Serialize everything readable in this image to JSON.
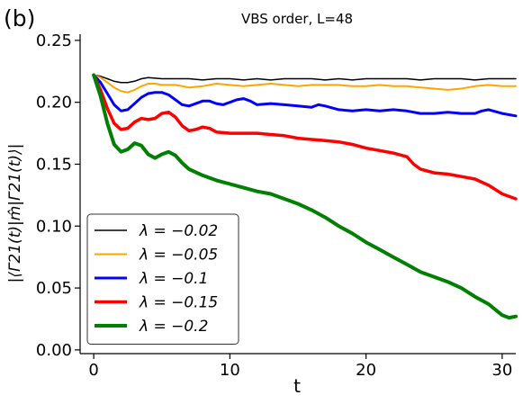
{
  "panel_label": "(b)",
  "chart_data": {
    "type": "line",
    "title": "VBS order, L=48",
    "xlabel": "t",
    "ylabel": "|⟨Γ21(t)|m̂|Γ21(t)⟩|",
    "xlim": [
      -1,
      31
    ],
    "ylim": [
      -0.003,
      0.255
    ],
    "xticks": [
      0,
      10,
      20,
      30
    ],
    "yticks": [
      0.0,
      0.05,
      0.1,
      0.15,
      0.2,
      0.25
    ],
    "ytick_labels": [
      "0.00",
      "0.05",
      "0.10",
      "0.15",
      "0.20",
      "0.25"
    ],
    "grid": false,
    "legend_position": "lower-left",
    "series": [
      {
        "name": "λ = −0.02",
        "color": "#000000",
        "linewidth": 1.5,
        "points": [
          [
            0,
            0.222
          ],
          [
            0.5,
            0.221
          ],
          [
            1,
            0.219
          ],
          [
            1.5,
            0.217
          ],
          [
            2,
            0.216
          ],
          [
            2.5,
            0.216
          ],
          [
            3,
            0.217
          ],
          [
            3.5,
            0.219
          ],
          [
            4,
            0.22
          ],
          [
            5,
            0.219
          ],
          [
            6,
            0.219
          ],
          [
            7,
            0.219
          ],
          [
            8,
            0.218
          ],
          [
            9,
            0.219
          ],
          [
            10,
            0.219
          ],
          [
            11,
            0.218
          ],
          [
            12,
            0.219
          ],
          [
            13,
            0.218
          ],
          [
            14,
            0.219
          ],
          [
            15,
            0.219
          ],
          [
            16,
            0.219
          ],
          [
            17,
            0.218
          ],
          [
            18,
            0.219
          ],
          [
            19,
            0.218
          ],
          [
            20,
            0.219
          ],
          [
            21,
            0.219
          ],
          [
            22,
            0.219
          ],
          [
            23,
            0.219
          ],
          [
            24,
            0.218
          ],
          [
            25,
            0.219
          ],
          [
            26,
            0.219
          ],
          [
            27,
            0.219
          ],
          [
            28,
            0.218
          ],
          [
            29,
            0.219
          ],
          [
            30,
            0.219
          ],
          [
            31,
            0.219
          ]
        ]
      },
      {
        "name": "λ = −0.05",
        "color": "#ffa500",
        "linewidth": 2,
        "points": [
          [
            0,
            0.222
          ],
          [
            0.5,
            0.22
          ],
          [
            1,
            0.216
          ],
          [
            1.5,
            0.212
          ],
          [
            2,
            0.209
          ],
          [
            2.5,
            0.208
          ],
          [
            3,
            0.21
          ],
          [
            3.5,
            0.213
          ],
          [
            4,
            0.215
          ],
          [
            4.5,
            0.215
          ],
          [
            5,
            0.214
          ],
          [
            6,
            0.214
          ],
          [
            7,
            0.212
          ],
          [
            8,
            0.213
          ],
          [
            9,
            0.215
          ],
          [
            10,
            0.214
          ],
          [
            11,
            0.213
          ],
          [
            12,
            0.214
          ],
          [
            13,
            0.215
          ],
          [
            14,
            0.214
          ],
          [
            15,
            0.213
          ],
          [
            16,
            0.214
          ],
          [
            17,
            0.214
          ],
          [
            18,
            0.214
          ],
          [
            19,
            0.213
          ],
          [
            20,
            0.213
          ],
          [
            21,
            0.214
          ],
          [
            22,
            0.213
          ],
          [
            23,
            0.213
          ],
          [
            24,
            0.212
          ],
          [
            25,
            0.211
          ],
          [
            26,
            0.21
          ],
          [
            27,
            0.211
          ],
          [
            28,
            0.213
          ],
          [
            29,
            0.214
          ],
          [
            30,
            0.213
          ],
          [
            31,
            0.213
          ]
        ]
      },
      {
        "name": "λ = −0.1",
        "color": "#0000ff",
        "linewidth": 3,
        "points": [
          [
            0,
            0.222
          ],
          [
            0.5,
            0.216
          ],
          [
            1,
            0.207
          ],
          [
            1.5,
            0.198
          ],
          [
            2,
            0.193
          ],
          [
            2.5,
            0.194
          ],
          [
            3,
            0.199
          ],
          [
            3.5,
            0.204
          ],
          [
            4,
            0.207
          ],
          [
            4.5,
            0.208
          ],
          [
            5,
            0.208
          ],
          [
            5.5,
            0.206
          ],
          [
            6,
            0.202
          ],
          [
            6.5,
            0.198
          ],
          [
            7,
            0.197
          ],
          [
            7.5,
            0.199
          ],
          [
            8,
            0.201
          ],
          [
            8.5,
            0.201
          ],
          [
            9,
            0.199
          ],
          [
            9.5,
            0.198
          ],
          [
            10,
            0.2
          ],
          [
            10.5,
            0.202
          ],
          [
            11,
            0.203
          ],
          [
            11.5,
            0.201
          ],
          [
            12,
            0.198
          ],
          [
            13,
            0.199
          ],
          [
            14,
            0.198
          ],
          [
            15,
            0.197
          ],
          [
            16,
            0.196
          ],
          [
            16.5,
            0.198
          ],
          [
            17,
            0.197
          ],
          [
            18,
            0.194
          ],
          [
            19,
            0.193
          ],
          [
            20,
            0.194
          ],
          [
            21,
            0.193
          ],
          [
            22,
            0.194
          ],
          [
            23,
            0.193
          ],
          [
            24,
            0.191
          ],
          [
            25,
            0.191
          ],
          [
            26,
            0.192
          ],
          [
            27,
            0.191
          ],
          [
            28,
            0.191
          ],
          [
            28.5,
            0.193
          ],
          [
            29,
            0.194
          ],
          [
            30,
            0.191
          ],
          [
            31,
            0.189
          ]
        ]
      },
      {
        "name": "λ = −0.15",
        "color": "#ff0000",
        "linewidth": 3.5,
        "points": [
          [
            0,
            0.222
          ],
          [
            0.5,
            0.21
          ],
          [
            1,
            0.195
          ],
          [
            1.5,
            0.183
          ],
          [
            2,
            0.178
          ],
          [
            2.5,
            0.179
          ],
          [
            3,
            0.184
          ],
          [
            3.5,
            0.187
          ],
          [
            4,
            0.186
          ],
          [
            4.5,
            0.187
          ],
          [
            5,
            0.191
          ],
          [
            5.5,
            0.192
          ],
          [
            6,
            0.188
          ],
          [
            6.5,
            0.181
          ],
          [
            7,
            0.177
          ],
          [
            7.5,
            0.178
          ],
          [
            8,
            0.18
          ],
          [
            8.5,
            0.179
          ],
          [
            9,
            0.176
          ],
          [
            10,
            0.175
          ],
          [
            11,
            0.175
          ],
          [
            12,
            0.175
          ],
          [
            13,
            0.174
          ],
          [
            14,
            0.173
          ],
          [
            15,
            0.171
          ],
          [
            16,
            0.17
          ],
          [
            17,
            0.169
          ],
          [
            18,
            0.168
          ],
          [
            19,
            0.166
          ],
          [
            20,
            0.163
          ],
          [
            21,
            0.161
          ],
          [
            22,
            0.159
          ],
          [
            23,
            0.156
          ],
          [
            23.5,
            0.15
          ],
          [
            24,
            0.146
          ],
          [
            25,
            0.143
          ],
          [
            26,
            0.142
          ],
          [
            27,
            0.14
          ],
          [
            28,
            0.138
          ],
          [
            29,
            0.133
          ],
          [
            30,
            0.126
          ],
          [
            31,
            0.122
          ]
        ]
      },
      {
        "name": "λ = −0.2",
        "color": "#008000",
        "linewidth": 4,
        "points": [
          [
            0,
            0.222
          ],
          [
            0.5,
            0.205
          ],
          [
            1,
            0.183
          ],
          [
            1.5,
            0.166
          ],
          [
            2,
            0.16
          ],
          [
            2.5,
            0.162
          ],
          [
            3,
            0.167
          ],
          [
            3.5,
            0.165
          ],
          [
            4,
            0.158
          ],
          [
            4.5,
            0.155
          ],
          [
            5,
            0.158
          ],
          [
            5.5,
            0.16
          ],
          [
            6,
            0.157
          ],
          [
            6.5,
            0.151
          ],
          [
            7,
            0.146
          ],
          [
            8,
            0.141
          ],
          [
            9,
            0.137
          ],
          [
            10,
            0.134
          ],
          [
            11,
            0.131
          ],
          [
            12,
            0.128
          ],
          [
            13,
            0.126
          ],
          [
            14,
            0.122
          ],
          [
            15,
            0.118
          ],
          [
            16,
            0.113
          ],
          [
            17,
            0.107
          ],
          [
            18,
            0.1
          ],
          [
            19,
            0.094
          ],
          [
            20,
            0.087
          ],
          [
            21,
            0.081
          ],
          [
            22,
            0.075
          ],
          [
            23,
            0.069
          ],
          [
            24,
            0.063
          ],
          [
            25,
            0.059
          ],
          [
            26,
            0.055
          ],
          [
            27,
            0.05
          ],
          [
            28,
            0.043
          ],
          [
            29,
            0.037
          ],
          [
            30,
            0.028
          ],
          [
            30.5,
            0.026
          ],
          [
            31,
            0.027
          ]
        ]
      }
    ]
  }
}
